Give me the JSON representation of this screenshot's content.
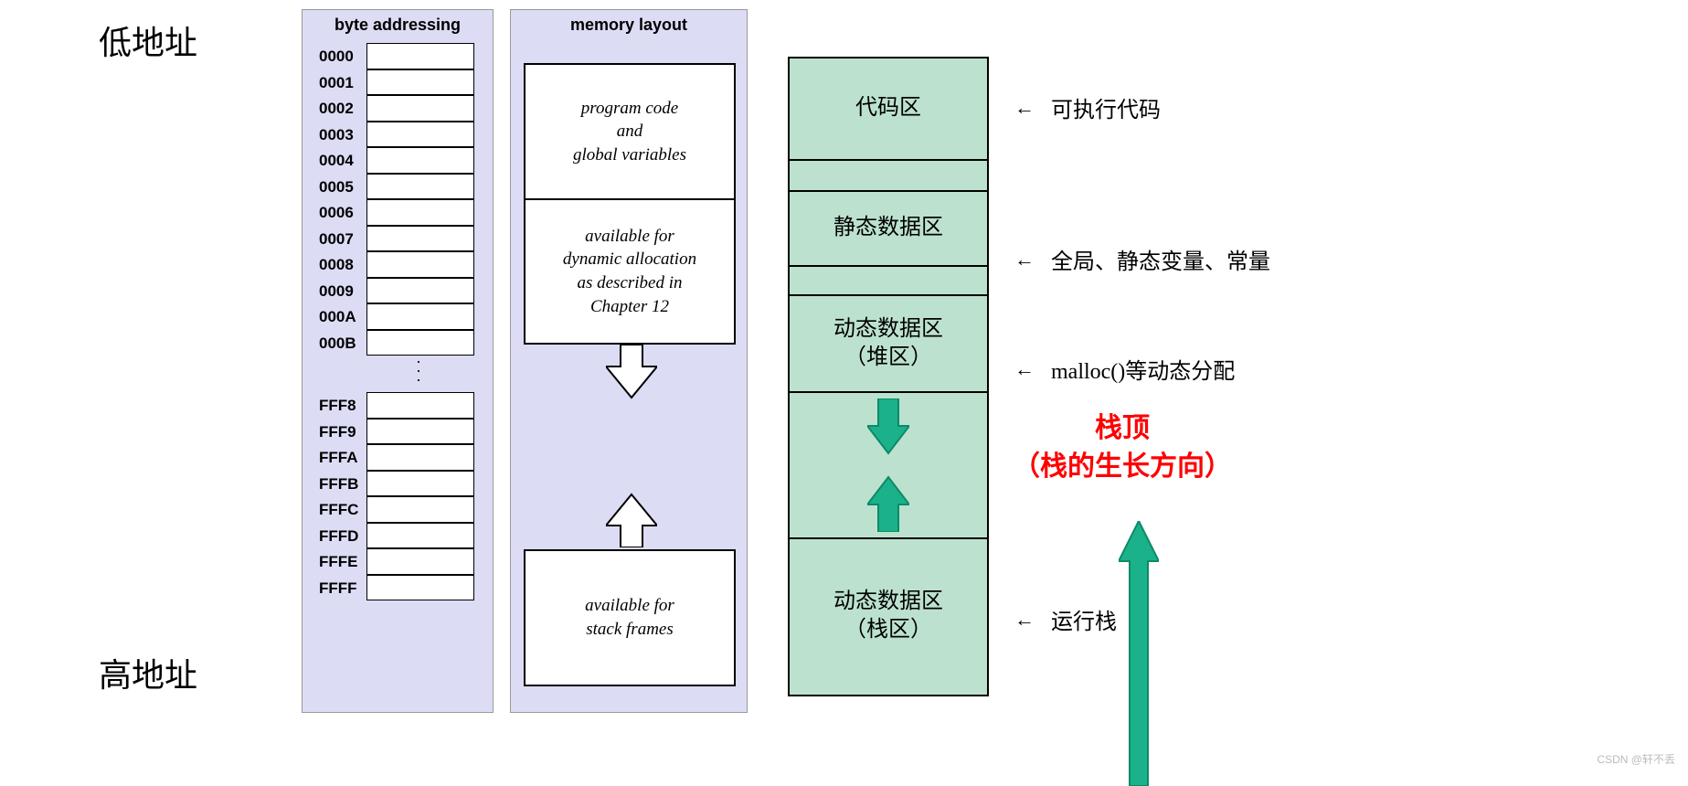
{
  "labels": {
    "low_addr": "低地址",
    "high_addr": "高地址"
  },
  "byte_addressing": {
    "title": "byte addressing",
    "top_addresses": [
      "0000",
      "0001",
      "0002",
      "0003",
      "0004",
      "0005",
      "0006",
      "0007",
      "0008",
      "0009",
      "000A",
      "000B"
    ],
    "bottom_addresses": [
      "FFF8",
      "FFF9",
      "FFFA",
      "FFFB",
      "FFFC",
      "FFFD",
      "FFFE",
      "FFFF"
    ],
    "row_height": 28.5,
    "bg_color": "#dcdcf5",
    "cell_border": "#000000",
    "cell_bg": "#ffffff"
  },
  "memory_layout": {
    "title": "memory layout",
    "box1_lines": [
      "program code",
      "and",
      "global variables"
    ],
    "box2_lines": [
      "available for",
      "dynamic allocation",
      "as described in",
      "Chapter 12"
    ],
    "box3_lines": [
      "available for",
      "stack frames"
    ],
    "bg_color": "#dcdcf5",
    "box_bg": "#ffffff",
    "box_border": "#000000",
    "arrow_fill": "#ffffff",
    "arrow_stroke": "#000000"
  },
  "regions": {
    "fill_color": "#bce2cf",
    "border_color": "#000000",
    "heights": {
      "code": 112,
      "gap1": 34,
      "static": 82,
      "gap2": 32,
      "heap": 106,
      "middle": 160,
      "stack": 168
    },
    "r_code": "代码区",
    "r_static": "静态数据区",
    "r_heap_line1": "动态数据区",
    "r_heap_line2": "（堆区）",
    "r_stack_line1": "动态数据区",
    "r_stack_line2": "（栈区）",
    "green_arrow_fill": "#1bb18a",
    "green_arrow_stroke": "#0d8a67"
  },
  "annotations": {
    "arrow_glyph": "←",
    "a1": "可执行代码",
    "a2": "全局、静态变量、常量",
    "a3": "malloc()等动态分配",
    "a4": "运行栈"
  },
  "stack_top": {
    "line1": "栈顶",
    "line2": "（栈的生长方向）",
    "color": "#ff0000",
    "arrow_fill": "#1bb18a",
    "arrow_stroke": "#0d8a67"
  },
  "watermark": "CSDN @轩不丢"
}
